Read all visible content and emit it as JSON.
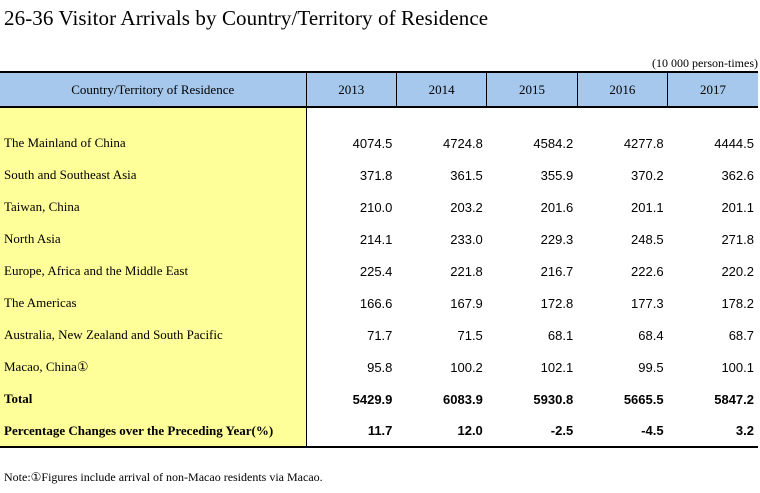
{
  "title": "26-36  Visitor Arrivals by Country/Territory of Residence",
  "unit": "(10 000 person-times)",
  "table": {
    "header_label": "Country/Territory of Residence",
    "years": [
      "2013",
      "2014",
      "2015",
      "2016",
      "2017"
    ],
    "rows": [
      {
        "label": "The Mainland of China",
        "values": [
          "4074.5",
          "4724.8",
          "4584.2",
          "4277.8",
          "4444.5"
        ]
      },
      {
        "label": "South and Southeast Asia",
        "values": [
          "371.8",
          "361.5",
          "355.9",
          "370.2",
          "362.6"
        ]
      },
      {
        "label": "Taiwan, China",
        "values": [
          "210.0",
          "203.2",
          "201.6",
          "201.1",
          "201.1"
        ]
      },
      {
        "label": "North Asia",
        "values": [
          "214.1",
          "233.0",
          "229.3",
          "248.5",
          "271.8"
        ]
      },
      {
        "label": "Europe, Africa and the Middle East",
        "values": [
          "225.4",
          "221.8",
          "216.7",
          "222.6",
          "220.2"
        ]
      },
      {
        "label": "The Americas",
        "values": [
          "166.6",
          "167.9",
          "172.8",
          "177.3",
          "178.2"
        ]
      },
      {
        "label": "Australia, New Zealand and South Pacific",
        "values": [
          "71.7",
          "71.5",
          "68.1",
          "68.4",
          "68.7"
        ]
      },
      {
        "label": "Macao, China①",
        "values": [
          "95.8",
          "100.2",
          "102.1",
          "99.5",
          "100.1"
        ]
      },
      {
        "label": "Total",
        "values": [
          "5429.9",
          "6083.9",
          "5930.8",
          "5665.5",
          "5847.2"
        ],
        "bold": true
      },
      {
        "label": "Percentage Changes over the Preceding Year(%)",
        "values": [
          "11.7",
          "12.0",
          "-2.5",
          "-4.5",
          "3.2"
        ],
        "bold": true
      }
    ]
  },
  "note": "Note:①Figures include arrival of non-Macao residents via Macao."
}
